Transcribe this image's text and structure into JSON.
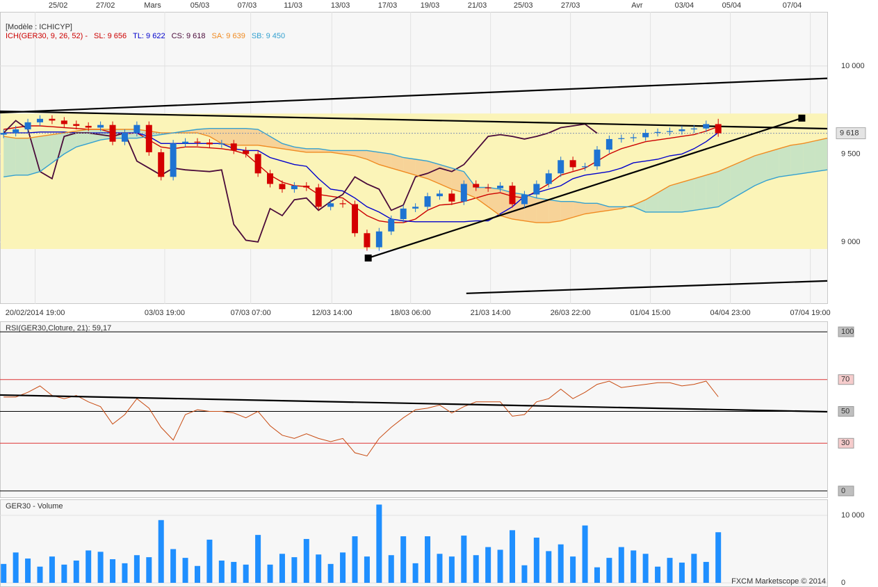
{
  "header": {
    "model": "[Modèle : ICHICYP]"
  },
  "watermark": "FXCM Marketscope © 2014",
  "chart_data": [
    {
      "type": "candlestick",
      "legend_prefix": "ICH(GER30, 9, 26, 52) -",
      "legend_color": "#cc0000",
      "xlim": [
        -0.3,
        68
      ],
      "ylim": [
        8648,
        10308
      ],
      "yticks": [
        {
          "value": 9000,
          "label": "9 000"
        },
        {
          "value": 9500,
          "label": "9 500"
        },
        {
          "value": 10000,
          "label": "10 000"
        }
      ],
      "grid": true,
      "top_xticks": [
        {
          "value": 4.5,
          "label": "25/02"
        },
        {
          "value": 8.4,
          "label": "27/02"
        },
        {
          "value": 12.3,
          "label": "Mars"
        },
        {
          "value": 16.2,
          "label": "05/03"
        },
        {
          "value": 20.1,
          "label": "07/03"
        },
        {
          "value": 23.9,
          "label": "11/03"
        },
        {
          "value": 27.8,
          "label": "13/03"
        },
        {
          "value": 31.7,
          "label": "17/03"
        },
        {
          "value": 35.2,
          "label": "19/03"
        },
        {
          "value": 39.1,
          "label": "21/03"
        },
        {
          "value": 42.9,
          "label": "25/03"
        },
        {
          "value": 46.8,
          "label": "27/03"
        },
        {
          "value": 52.3,
          "label": "Avr"
        },
        {
          "value": 56.2,
          "label": "03/04"
        },
        {
          "value": 60.1,
          "label": "05/04"
        },
        {
          "value": 65.1,
          "label": "07/04"
        }
      ],
      "xticks": [
        {
          "value": 2.6,
          "label": "20/02/2014 19:00"
        },
        {
          "value": 13.3,
          "label": "03/03 19:00"
        },
        {
          "value": 20.4,
          "label": "07/03 07:00"
        },
        {
          "value": 27.1,
          "label": "12/03 14:00"
        },
        {
          "value": 33.6,
          "label": "18/03 06:00"
        },
        {
          "value": 40.2,
          "label": "21/03 14:00"
        },
        {
          "value": 46.8,
          "label": "26/03 22:00"
        },
        {
          "value": 53.4,
          "label": "01/04 15:00"
        },
        {
          "value": 60.0,
          "label": "04/04 23:00"
        },
        {
          "value": 66.6,
          "label": "07/04 19:00"
        }
      ],
      "up_color": "#1e73d2",
      "down_color": "#d40000",
      "open": [
        9610,
        9620,
        9640,
        9680,
        9700,
        9690,
        9670,
        9660,
        9650,
        9665,
        9570,
        9620,
        9665,
        9510,
        9370,
        9560,
        9570,
        9565,
        9555,
        9560,
        9520,
        9500,
        9390,
        9330,
        9300,
        9320,
        9310,
        9200,
        9220,
        9215,
        9050,
        8970,
        9060,
        9130,
        9190,
        9200,
        9260,
        9275,
        9230,
        9330,
        9310,
        9305,
        9320,
        9215,
        9270,
        9330,
        9390,
        9465,
        9425,
        9430,
        9525,
        9585,
        9590,
        9595,
        9620,
        9625,
        9630,
        9640,
        9645,
        9670
      ],
      "high": [
        9640,
        9660,
        9700,
        9720,
        9720,
        9710,
        9690,
        9680,
        9685,
        9685,
        9640,
        9685,
        9685,
        9530,
        9580,
        9590,
        9590,
        9585,
        9580,
        9580,
        9540,
        9520,
        9410,
        9350,
        9340,
        9340,
        9330,
        9240,
        9240,
        9235,
        9070,
        9080,
        9150,
        9210,
        9220,
        9280,
        9295,
        9295,
        9350,
        9350,
        9330,
        9340,
        9340,
        9290,
        9350,
        9410,
        9485,
        9485,
        9450,
        9545,
        9605,
        9610,
        9615,
        9640,
        9645,
        9650,
        9660,
        9665,
        9690,
        9700
      ],
      "low": [
        9590,
        9600,
        9620,
        9660,
        9670,
        9650,
        9640,
        9630,
        9630,
        9550,
        9550,
        9600,
        9490,
        9350,
        9350,
        9540,
        9545,
        9535,
        9535,
        9500,
        9480,
        9370,
        9310,
        9280,
        9280,
        9290,
        9180,
        9180,
        9195,
        9030,
        8950,
        8950,
        9040,
        9110,
        9170,
        9180,
        9240,
        9210,
        9210,
        9290,
        9285,
        9285,
        9195,
        9195,
        9250,
        9310,
        9370,
        9405,
        9405,
        9410,
        9505,
        9565,
        9570,
        9575,
        9600,
        9605,
        9610,
        9620,
        9625,
        9598
      ],
      "close": [
        9620,
        9640,
        9680,
        9700,
        9690,
        9670,
        9660,
        9650,
        9665,
        9570,
        9620,
        9665,
        9510,
        9370,
        9560,
        9570,
        9565,
        9555,
        9560,
        9520,
        9500,
        9390,
        9330,
        9300,
        9320,
        9310,
        9200,
        9220,
        9215,
        9050,
        8970,
        9060,
        9130,
        9190,
        9200,
        9260,
        9275,
        9230,
        9330,
        9310,
        9305,
        9320,
        9215,
        9270,
        9330,
        9390,
        9465,
        9425,
        9430,
        9525,
        9585,
        9590,
        9595,
        9620,
        9625,
        9630,
        9640,
        9645,
        9670,
        9618
      ],
      "zone": {
        "low": 8960,
        "high": 9730,
        "color": "#fbf4b8"
      },
      "cloud_colors": {
        "up": "#bfe0c4",
        "down": "#f6cd92"
      },
      "series": [
        {
          "label": "SL: 9 656",
          "color": "#cc0000",
          "values": [
            9640,
            9650,
            9660,
            9660,
            9655,
            9650,
            9645,
            9640,
            9640,
            9620,
            9615,
            9620,
            9580,
            9540,
            9530,
            9540,
            9540,
            9535,
            9530,
            9520,
            9500,
            9440,
            9380,
            9340,
            9320,
            9315,
            9270,
            9260,
            9250,
            9200,
            9150,
            9120,
            9110,
            9110,
            9130,
            9180,
            9210,
            9215,
            9230,
            9250,
            9270,
            9280,
            9260,
            9250,
            9290,
            9330,
            9380,
            9400,
            9420,
            9460,
            9500,
            9530,
            9550,
            9570,
            9580,
            9590,
            9600,
            9610,
            9630,
            9656
          ]
        },
        {
          "label": "TL: 9 622",
          "color": "#0000cc",
          "values": [
            9620,
            9620,
            9620,
            9625,
            9625,
            9625,
            9620,
            9620,
            9620,
            9620,
            9620,
            9620,
            9600,
            9560,
            9560,
            9560,
            9560,
            9560,
            9560,
            9530,
            9520,
            9520,
            9480,
            9460,
            9440,
            9430,
            9360,
            9300,
            9290,
            9250,
            9200,
            9170,
            9130,
            9120,
            9115,
            9115,
            9115,
            9115,
            9115,
            9120,
            9120,
            9160,
            9200,
            9260,
            9280,
            9300,
            9320,
            9360,
            9380,
            9390,
            9400,
            9420,
            9450,
            9460,
            9470,
            9490,
            9500,
            9530,
            9570,
            9622
          ]
        },
        {
          "label": "CS: 9 618",
          "color": "#4a0a3a",
          "values": [
            9620,
            9690,
            9640,
            9400,
            9360,
            9600,
            9620,
            9620,
            9610,
            9600,
            9620,
            9460,
            9420,
            9380,
            9420,
            9410,
            9405,
            9400,
            9410,
            9100,
            9010,
            9000,
            9190,
            9150,
            9240,
            9250,
            9180,
            9230,
            9270,
            9370,
            9330,
            9300,
            9180,
            9210,
            9370,
            9390,
            9420,
            9400,
            9440,
            9520,
            9600,
            9610,
            9600,
            9585,
            9600,
            9620,
            9650,
            9660,
            9670,
            9618,
            null,
            null,
            null,
            null,
            null,
            null,
            null,
            null,
            null,
            null
          ]
        },
        {
          "label": "SA: 9 639",
          "color": "#f08a20",
          "values": [
            9600,
            9590,
            9590,
            9600,
            9610,
            9620,
            9630,
            9640,
            9640,
            9640,
            9640,
            9640,
            9630,
            9620,
            9620,
            9620,
            9620,
            9600,
            9560,
            9550,
            9550,
            9550,
            9540,
            9530,
            9520,
            9510,
            9510,
            9510,
            9500,
            9490,
            9470,
            9440,
            9420,
            9400,
            9380,
            9360,
            9330,
            9300,
            9280,
            9250,
            9200,
            9150,
            9130,
            9120,
            9110,
            9110,
            9120,
            9140,
            9160,
            9170,
            9180,
            9190,
            9210,
            9240,
            9280,
            9320,
            9340,
            9360,
            9380,
            9400,
            9430,
            9460,
            9490,
            9510,
            9530,
            9550,
            9560,
            9575,
            9590
          ]
        },
        {
          "label": "SB: 9 450",
          "color": "#33a0d0",
          "values": [
            9370,
            9380,
            9380,
            9400,
            9450,
            9500,
            9540,
            9560,
            9580,
            9590,
            9590,
            9590,
            9600,
            9610,
            9620,
            9630,
            9640,
            9645,
            9645,
            9645,
            9645,
            9640,
            9600,
            9560,
            9540,
            9530,
            9530,
            9520,
            9520,
            9520,
            9520,
            9510,
            9500,
            9480,
            9470,
            9460,
            9440,
            9420,
            9400,
            9310,
            9310,
            9300,
            9280,
            9270,
            9250,
            9240,
            9230,
            9230,
            9220,
            9220,
            9200,
            9200,
            9200,
            9170,
            9170,
            9170,
            9170,
            9180,
            9190,
            9200,
            9240,
            9280,
            9320,
            9350,
            9370,
            9380,
            9390,
            9400,
            9410
          ]
        }
      ],
      "trendlines": [
        {
          "x": [
            -0.3,
            68
          ],
          "y": [
            9735,
            9930
          ]
        },
        {
          "x": [
            -0.3,
            68
          ],
          "y": [
            9743,
            9644
          ]
        },
        {
          "x": [
            30.1,
            65.9
          ],
          "y": [
            8909,
            9704
          ],
          "markers": true
        },
        {
          "x": [
            38.2,
            68
          ],
          "y": [
            8708,
            8779
          ]
        }
      ],
      "last_price": {
        "value": 9618,
        "label": "9 618"
      }
    },
    {
      "type": "line",
      "title": "RSI(GER30,Cloture, 21): 59,17",
      "title_color": "#b03000",
      "color": "#c84a10",
      "xlim": [
        -0.3,
        68
      ],
      "ylim": [
        -4.4,
        106.6
      ],
      "yticks": [
        0,
        30,
        50,
        70,
        100
      ],
      "tick_colors": [
        "#000000",
        "#dd3333",
        "#000000",
        "#dd3333",
        "#000000"
      ],
      "grid": true,
      "values": [
        59,
        59,
        62,
        66,
        60,
        58,
        60,
        56,
        53,
        42,
        48,
        58,
        52,
        40,
        32,
        48,
        51,
        50,
        50,
        49,
        46,
        50,
        41,
        35,
        33,
        36,
        33,
        31,
        33,
        24,
        22,
        33,
        40,
        46,
        51,
        52,
        54,
        49,
        53,
        56,
        56,
        56,
        47,
        48,
        56,
        58,
        64,
        58,
        62,
        67,
        69,
        65,
        66,
        67,
        68,
        68,
        66,
        67,
        69,
        59.17
      ],
      "trendlines": [
        {
          "x": [
            -0.3,
            68
          ],
          "y": [
            60.3,
            49.8
          ]
        }
      ]
    },
    {
      "type": "bar",
      "title": "GER30 - Volume",
      "title_color": "#1f6fc0",
      "color": "#1f8fff",
      "xlim": [
        -0.3,
        68
      ],
      "ylim": [
        -619,
        12371
      ],
      "yticks": [
        0,
        {
          "value": 10000,
          "label": "10 000"
        }
      ],
      "grid": true,
      "values": [
        2800,
        4500,
        3600,
        2400,
        3900,
        2700,
        3300,
        4800,
        4600,
        3500,
        2900,
        4100,
        3800,
        9300,
        5000,
        3700,
        2500,
        6400,
        3300,
        3100,
        2700,
        7100,
        2700,
        4300,
        3800,
        6500,
        4200,
        2800,
        4500,
        6900,
        3900,
        11600,
        4100,
        6900,
        2900,
        6900,
        4300,
        3900,
        7000,
        4100,
        5300,
        4900,
        7800,
        2600,
        6700,
        4700,
        5700,
        3900,
        8500,
        2300,
        3700,
        5300,
        4800,
        4300,
        2400,
        3700,
        3000,
        4300,
        3100,
        7500
      ]
    }
  ]
}
